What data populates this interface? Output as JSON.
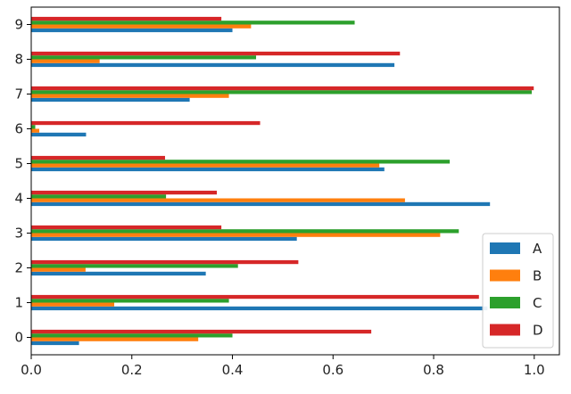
{
  "chart_data": {
    "type": "bar",
    "orientation": "horizontal",
    "categories": [
      "0",
      "1",
      "2",
      "3",
      "4",
      "5",
      "6",
      "7",
      "8",
      "9"
    ],
    "series": [
      {
        "name": "A",
        "color": "#1f77b4",
        "values": [
          0.095,
          0.907,
          0.347,
          0.528,
          0.912,
          0.702,
          0.109,
          0.315,
          0.722,
          0.4
        ]
      },
      {
        "name": "B",
        "color": "#ff7f0e",
        "values": [
          0.332,
          0.165,
          0.108,
          0.813,
          0.743,
          0.692,
          0.016,
          0.393,
          0.136,
          0.437
        ]
      },
      {
        "name": "C",
        "color": "#2ca02c",
        "values": [
          0.4,
          0.393,
          0.411,
          0.85,
          0.268,
          0.832,
          0.008,
          0.995,
          0.447,
          0.643
        ]
      },
      {
        "name": "D",
        "color": "#d62728",
        "values": [
          0.676,
          0.89,
          0.531,
          0.378,
          0.369,
          0.266,
          0.455,
          0.999,
          0.733,
          0.378
        ]
      }
    ],
    "xlim": [
      0,
      1.05
    ],
    "x_ticks": [
      "0.0",
      "0.2",
      "0.4",
      "0.6",
      "0.8",
      "1.0"
    ],
    "title": "",
    "xlabel": "",
    "ylabel": "",
    "grid": false,
    "legend_position": "lower-right"
  }
}
